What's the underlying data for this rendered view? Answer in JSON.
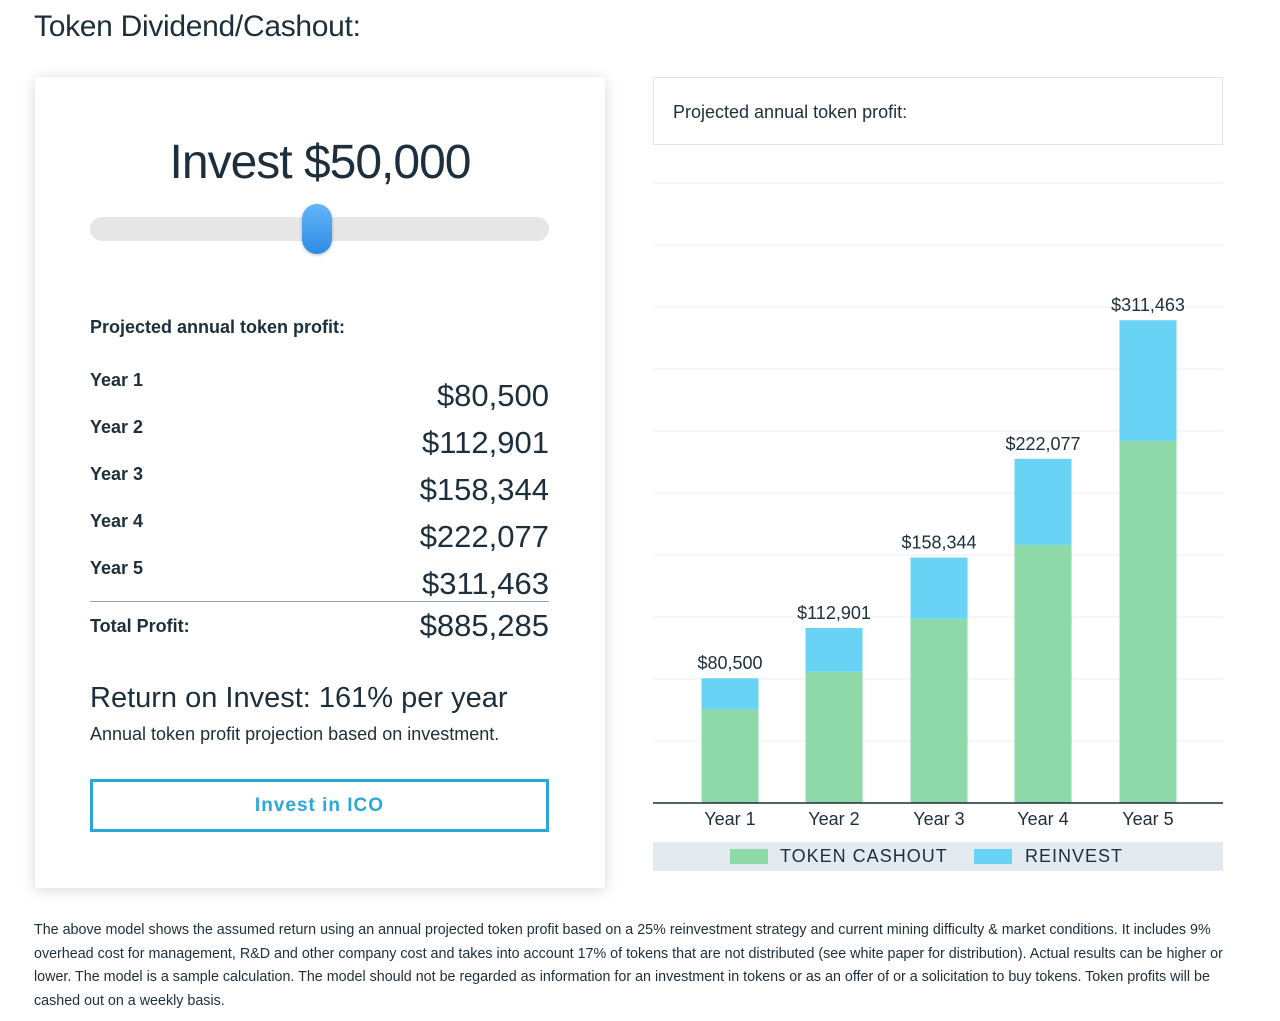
{
  "page": {
    "title": "Token Dividend/Cashout:"
  },
  "calculator": {
    "invest_heading": "Invest $50,000",
    "slider": {
      "value_fraction": 0.5
    },
    "projected_label": "Projected annual token profit:",
    "years": [
      {
        "label": "Year 1",
        "value": "$80,500"
      },
      {
        "label": "Year 2",
        "value": "$112,901"
      },
      {
        "label": "Year 3",
        "value": "$158,344"
      },
      {
        "label": "Year 4",
        "value": "$222,077"
      },
      {
        "label": "Year 5",
        "value": "$311,463"
      }
    ],
    "total_label": "Total Profit:",
    "total_value": "$885,285",
    "roi_title": "Return on Invest: 161% per year",
    "roi_subtitle": "Annual token profit projection based on investment.",
    "button_label": "Invest in ICO"
  },
  "chart_header": "Projected annual token profit:",
  "chart_data": {
    "type": "bar",
    "stacked": true,
    "categories": [
      "Year 1",
      "Year 2",
      "Year 3",
      "Year 4",
      "Year 5"
    ],
    "totals": [
      80500,
      112901,
      158344,
      222077,
      311463
    ],
    "total_labels": [
      "$80,500",
      "$112,901",
      "$158,344",
      "$222,077",
      "$311,463"
    ],
    "series": [
      {
        "name": "TOKEN CASHOUT",
        "color": "#8dd9a7",
        "values": [
          60375,
          84676,
          118758,
          166558,
          233597
        ]
      },
      {
        "name": "REINVEST",
        "color": "#69d3f5",
        "values": [
          20125,
          28225,
          39586,
          55519,
          77866
        ]
      }
    ],
    "ylim": [
      0,
      400000
    ],
    "grid": true,
    "legend_position": "bottom"
  },
  "disclaimer": "The above model shows the assumed return using an annual projected token profit based on a 25% reinvestment strategy and current mining difficulty & market conditions. It includes 9% overhead cost for management, R&D and other company cost and takes into account 17% of tokens that are not distributed (see white paper for distribution). Actual results can be higher or lower. The model is a sample calculation. The model should not be regarded as information for an investment in tokens or as an offer of or a solicitation to buy tokens. Token profits will be cashed out on a weekly basis."
}
